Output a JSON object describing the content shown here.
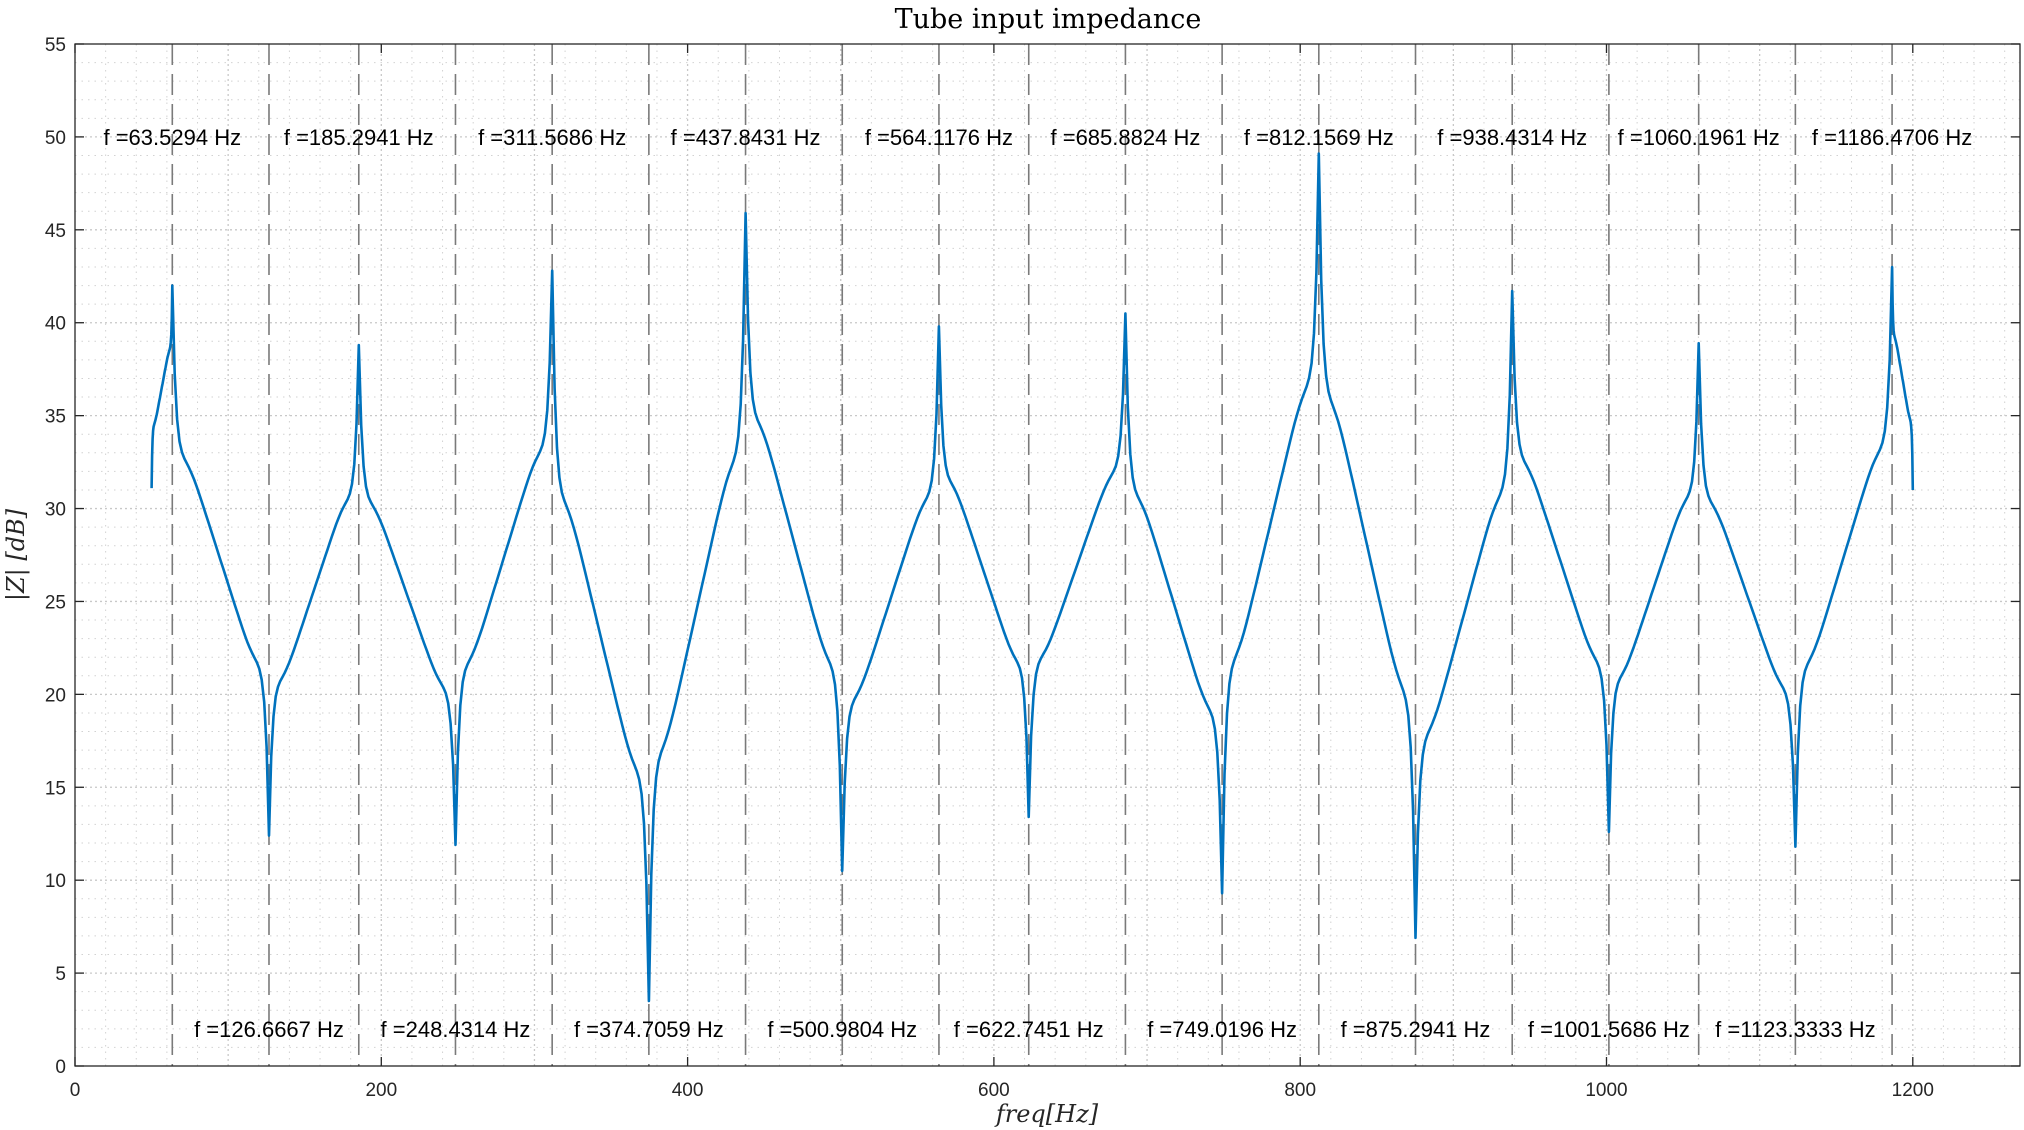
{
  "chart_data": {
    "type": "line",
    "title": "Tube input impedance",
    "xlabel": "freq[Hz]",
    "ylabel": "|Z| [dB]",
    "xlim": [
      0,
      1270
    ],
    "ylim": [
      0,
      55
    ],
    "xticks": [
      0,
      200,
      400,
      600,
      800,
      1000,
      1200
    ],
    "yticks": [
      0,
      5,
      10,
      15,
      20,
      25,
      30,
      35,
      40,
      45,
      50,
      55
    ],
    "grid": true,
    "minor_grid": true,
    "line_color": "#0072BD",
    "marker_line_color": "#7a7a7a",
    "maxima_labels": [
      "f =63.5294 Hz",
      "f =185.2941 Hz",
      "f =311.5686 Hz",
      "f =437.8431 Hz",
      "f =564.1176 Hz",
      "f =685.8824 Hz",
      "f =812.1569 Hz",
      "f =938.4314 Hz",
      "f =1060.1961 Hz",
      "f =1186.4706 Hz"
    ],
    "minima_labels": [
      "f =126.6667 Hz",
      "f =248.4314 Hz",
      "f =374.7059 Hz",
      "f =500.9804 Hz",
      "f =622.7451 Hz",
      "f =749.0196 Hz",
      "f =875.2941 Hz",
      "f =1001.5686 Hz",
      "f =1123.3333 Hz"
    ],
    "maxima": [
      {
        "f": 63.5294,
        "db": 42.0
      },
      {
        "f": 185.2941,
        "db": 38.8
      },
      {
        "f": 311.5686,
        "db": 42.8
      },
      {
        "f": 437.8431,
        "db": 45.9
      },
      {
        "f": 564.1176,
        "db": 39.8
      },
      {
        "f": 685.8824,
        "db": 40.5
      },
      {
        "f": 812.1569,
        "db": 49.1
      },
      {
        "f": 938.4314,
        "db": 41.7
      },
      {
        "f": 1060.1961,
        "db": 38.9
      },
      {
        "f": 1186.4706,
        "db": 43.0
      }
    ],
    "minima": [
      {
        "f": 126.6667,
        "db": 12.4
      },
      {
        "f": 248.4314,
        "db": 11.9
      },
      {
        "f": 374.7059,
        "db": 3.5
      },
      {
        "f": 500.9804,
        "db": 10.5
      },
      {
        "f": 622.7451,
        "db": 13.4
      },
      {
        "f": 749.0196,
        "db": 9.3
      },
      {
        "f": 875.2941,
        "db": 6.9
      },
      {
        "f": 1001.5686,
        "db": 12.6
      },
      {
        "f": 1123.3333,
        "db": 11.8
      }
    ],
    "curve_start": {
      "f": 50,
      "db": 31.1
    },
    "curve_end": {
      "f": 1200,
      "db": 31.0
    }
  }
}
